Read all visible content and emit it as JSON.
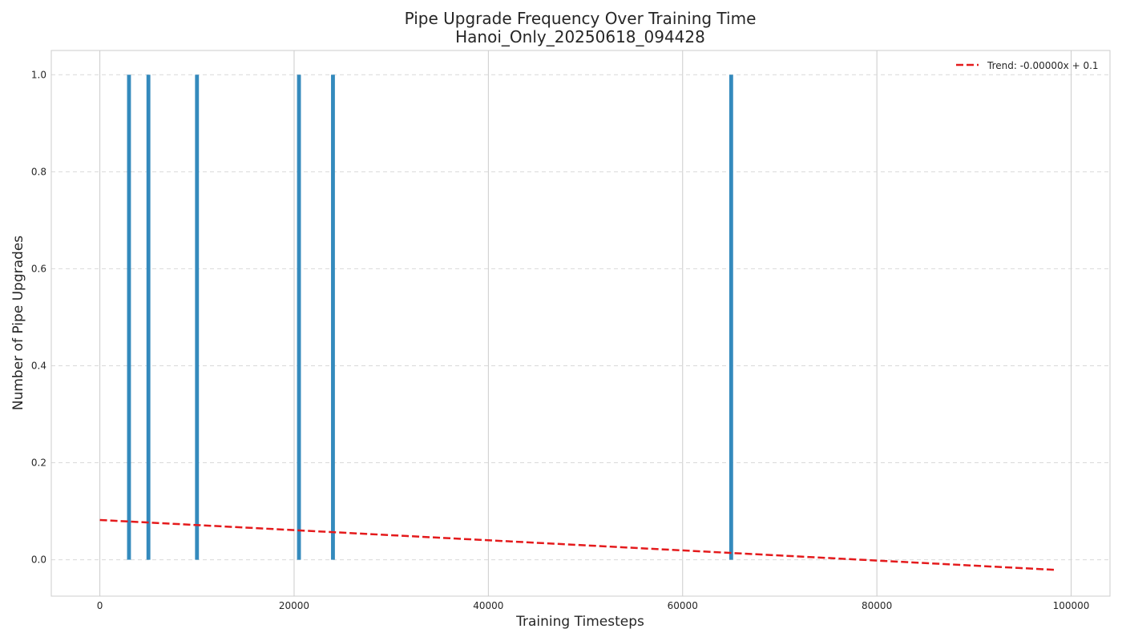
{
  "chart_data": {
    "type": "bar",
    "title": "Pipe Upgrade Frequency Over Training Time",
    "subtitle": "Hanoi_Only_20250618_094428",
    "xlabel": "Training Timesteps",
    "ylabel": "Number of Pipe Upgrades",
    "xlim": [
      -5000,
      104000
    ],
    "ylim": [
      -0.075,
      1.05
    ],
    "xticks": [
      0,
      20000,
      40000,
      60000,
      80000,
      100000
    ],
    "xtick_labels": [
      "0",
      "20000",
      "40000",
      "60000",
      "80000",
      "100000"
    ],
    "yticks": [
      0.0,
      0.2,
      0.4,
      0.6,
      0.8,
      1.0
    ],
    "ytick_labels": [
      "0.0",
      "0.2",
      "0.4",
      "0.6",
      "0.8",
      "1.0"
    ],
    "grid": true,
    "legend_position": "top-right",
    "series": [
      {
        "type": "bar",
        "color": "#348ABD",
        "x": [
          3000,
          5000,
          10000,
          20500,
          24000,
          65000
        ],
        "values": [
          1,
          1,
          1,
          1,
          1,
          1
        ],
        "bar_width": 400
      },
      {
        "type": "line",
        "name": "Trend: -0.00000x + 0.1",
        "color": "#e41a1c",
        "style": "dashed",
        "x": [
          0,
          98500
        ],
        "values": [
          0.082,
          -0.021
        ]
      }
    ]
  }
}
